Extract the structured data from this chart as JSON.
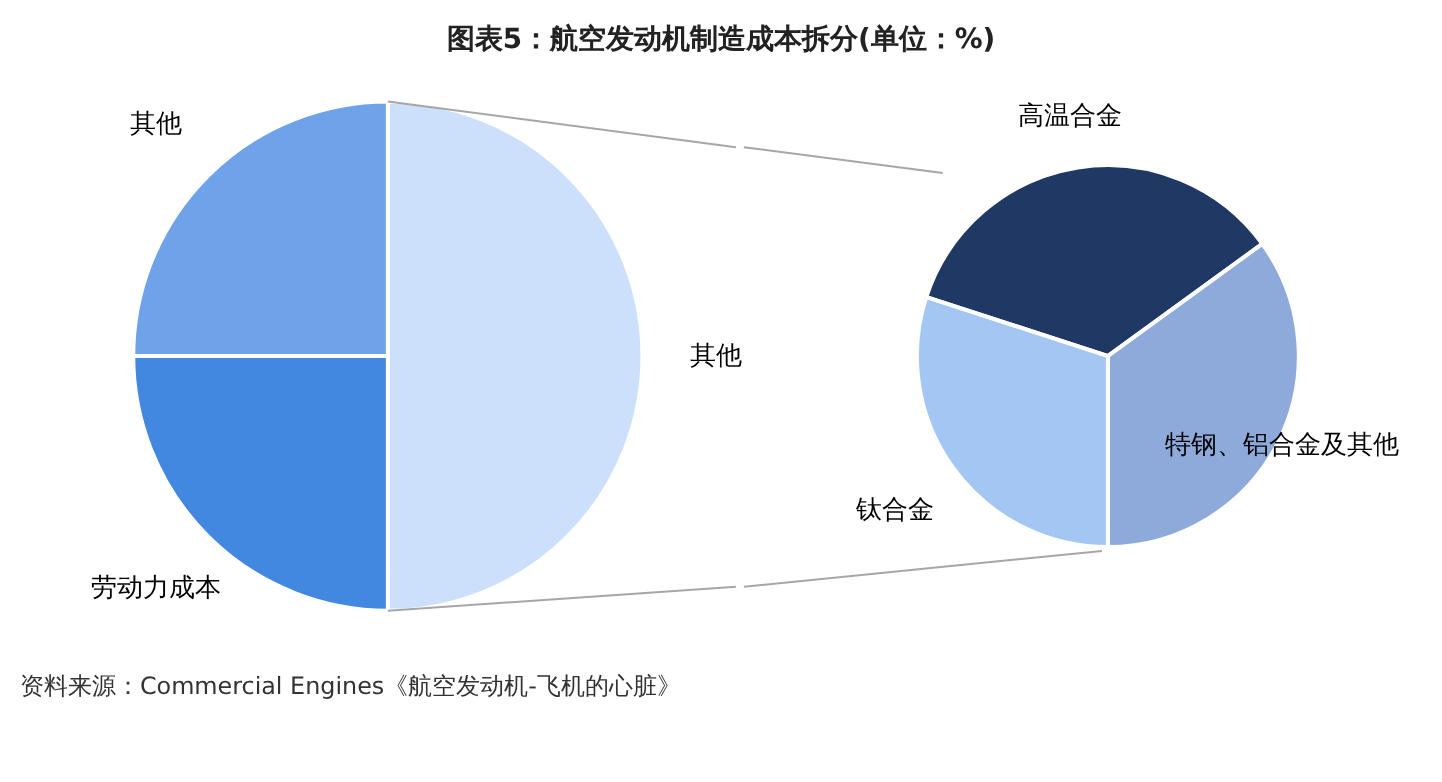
{
  "chart_data": [
    {
      "type": "pie",
      "title": "图表5：航空发动机制造成本拆分(单位：%)",
      "categories": [
        "其他",
        "劳动力成本",
        "其他"
      ],
      "values": [
        50,
        25,
        25
      ],
      "colors": [
        "#cce0fb",
        "#4287e0",
        "#6ea3ea"
      ],
      "legend": false,
      "annotations": [
        "资料来源：Commercial Engines《航空发动机-飞机的心脏》"
      ]
    },
    {
      "type": "pie",
      "categories": [
        "高温合金",
        "特钢、铝合金及其他",
        "钛合金"
      ],
      "values": [
        35,
        35,
        30
      ],
      "colors": [
        "#1f3864",
        "#8eaadb",
        "#a3c6f3"
      ],
      "legend": false
    }
  ]
}
